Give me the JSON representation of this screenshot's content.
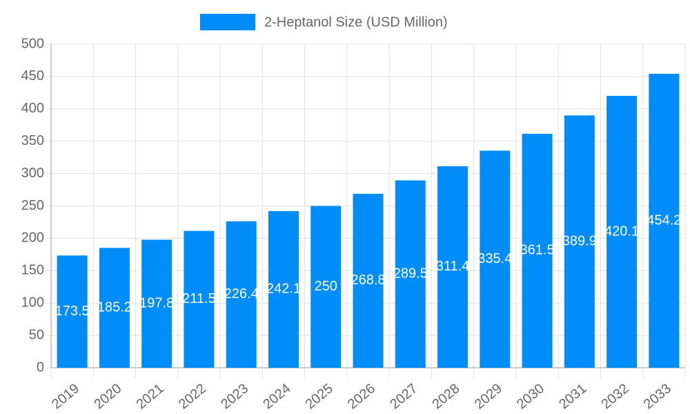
{
  "chart_data": {
    "type": "bar",
    "categories": [
      "2019",
      "2020",
      "2021",
      "2022",
      "2023",
      "2024",
      "2025",
      "2026",
      "2027",
      "2028",
      "2029",
      "2030",
      "2031",
      "2032",
      "2033"
    ],
    "series": [
      {
        "name": "2-Heptanol Size (USD Million)",
        "color": "#008cf9",
        "values": [
          173.5,
          185.2,
          197.8,
          211.5,
          226.4,
          242.1,
          250,
          268.8,
          289.5,
          311.4,
          335.4,
          361.5,
          389.9,
          420.1,
          454.2
        ]
      }
    ],
    "ylim": [
      0,
      500
    ],
    "yticks": [
      0,
      50,
      100,
      150,
      200,
      250,
      300,
      350,
      400,
      450,
      500
    ],
    "grid": true,
    "legend": "top"
  }
}
